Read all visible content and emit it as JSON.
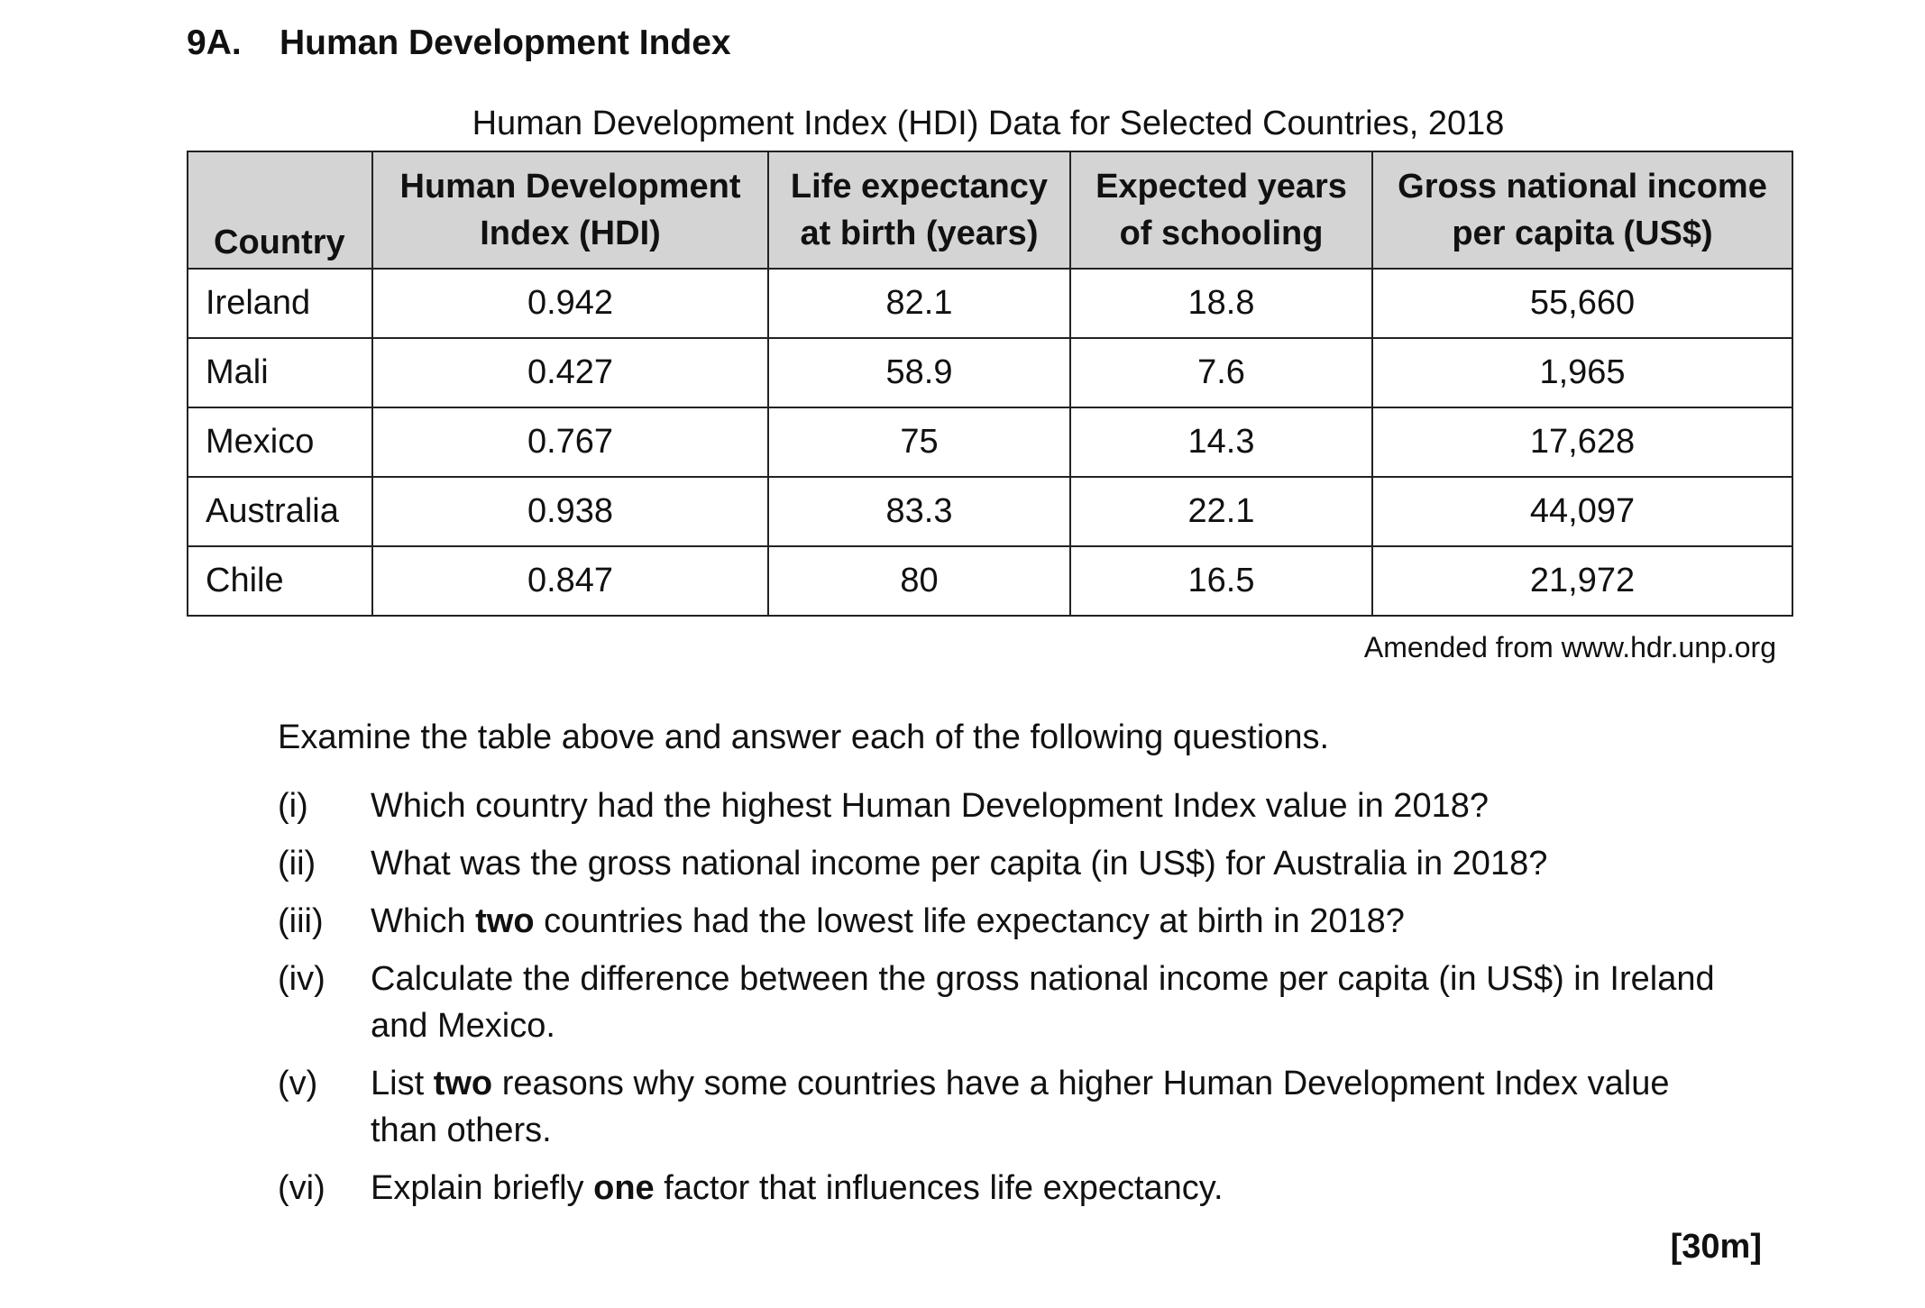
{
  "section": {
    "number": "9A.",
    "title": "Human Development Index"
  },
  "table": {
    "caption": "Human Development Index (HDI) Data for Selected Countries, 2018",
    "headers": {
      "country": "Country",
      "hdi": [
        "Human Development",
        "Index (HDI)"
      ],
      "life_expectancy": [
        "Life expectancy",
        "at birth (years)"
      ],
      "schooling": [
        "Expected years",
        "of schooling"
      ],
      "gni": [
        "Gross national income",
        "per capita (US$)"
      ]
    },
    "rows": [
      [
        "Ireland",
        "0.942",
        "82.1",
        "18.8",
        "55,660"
      ],
      [
        "Mali",
        "0.427",
        "58.9",
        "7.6",
        "1,965"
      ],
      [
        "Mexico",
        "0.767",
        "75",
        "14.3",
        "17,628"
      ],
      [
        "Australia",
        "0.938",
        "83.3",
        "22.1",
        "44,097"
      ],
      [
        "Chile",
        "0.847",
        "80",
        "16.5",
        "21,972"
      ]
    ],
    "source": "Amended from www.hdr.unp.org"
  },
  "instruction": "Examine the table above and answer each of the following questions.",
  "questions": [
    {
      "num": "(i)",
      "parts": [
        "Which country had the highest Human Development Index value in 2018?"
      ]
    },
    {
      "num": "(ii)",
      "parts": [
        "What was the gross national income per capita (in US$) for Australia in 2018?"
      ]
    },
    {
      "num": "(iii)",
      "parts": [
        "Which ",
        "two",
        " countries had the lowest life expectancy at birth in 2018?"
      ]
    },
    {
      "num": "(iv)",
      "parts": [
        "Calculate the difference between the gross national income per capita (in US$) in Ireland and Mexico."
      ]
    },
    {
      "num": "(v)",
      "parts": [
        "List ",
        "two",
        " reasons why some countries have a higher Human Development Index value than others."
      ]
    },
    {
      "num": "(vi)",
      "parts": [
        "Explain briefly ",
        "one",
        " factor that influences life expectancy."
      ]
    }
  ],
  "marks": "[30m]"
}
